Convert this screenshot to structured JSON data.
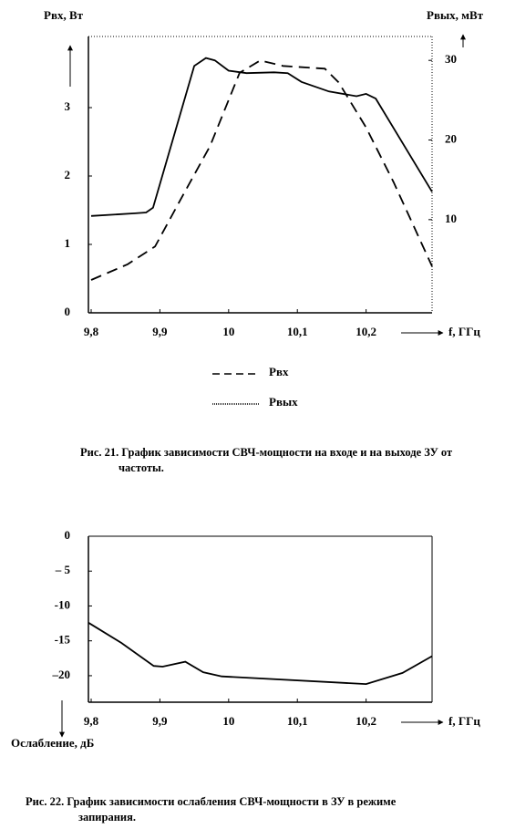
{
  "chart_data": [
    {
      "type": "line",
      "y_label": "Pвх, Вт",
      "y2_label": "Pвых, мВт",
      "x_label": "f, ГГц",
      "caption": [
        "Рис. 21. График зависимости СВЧ-мощности на входе и на выходе ЗУ от",
        "частоты."
      ],
      "xlim": [
        9.796,
        10.296
      ],
      "xticks": [
        {
          "value": 9.8,
          "label": "9,8"
        },
        {
          "value": 9.9,
          "label": "9,9"
        },
        10,
        {
          "value": 10.1,
          "label": "10,1"
        },
        {
          "value": 10.2,
          "label": "10,2"
        }
      ],
      "ylim": [
        0,
        4.04
      ],
      "yticks": [
        0,
        1,
        2,
        3
      ],
      "y2lim": [
        -1.7,
        33
      ],
      "y2ticks": [
        10,
        20,
        30
      ],
      "legend": "bottom",
      "series": [
        {
          "name": "Pвх",
          "color": "#000000",
          "line_style": "dashed",
          "x": [
            9.8,
            9.853,
            9.893,
            9.933,
            9.973,
            10.016,
            10.046,
            10.079,
            10.14,
            10.16,
            10.2,
            10.24,
            10.296
          ],
          "values": [
            0.48,
            0.71,
            0.97,
            1.71,
            2.44,
            3.51,
            3.69,
            3.61,
            3.57,
            3.37,
            2.71,
            1.91,
            0.68
          ]
        },
        {
          "name": "Pвых",
          "color": "#000000",
          "line_style": "solid",
          "axis": "y2",
          "x": [
            9.8,
            9.864,
            9.88,
            9.89,
            9.95,
            9.967,
            9.98,
            10.0,
            10.026,
            10.066,
            10.086,
            10.106,
            10.146,
            10.186,
            10.2,
            10.214,
            10.296
          ],
          "values": [
            10.46,
            10.8,
            10.9,
            11.5,
            29.3,
            30.3,
            30,
            28.7,
            28.4,
            28.5,
            28.4,
            27.3,
            26.1,
            25.5,
            25.8,
            25.2,
            13.5
          ]
        }
      ]
    },
    {
      "type": "line",
      "y_label": "Ослабление, дБ",
      "x_label": "f, ГГц",
      "caption": [
        "Рис. 22. График зависимости ослабления СВЧ-мощности в ЗУ в режиме",
        "запирания."
      ],
      "xlim": [
        9.796,
        10.296
      ],
      "xticks": [
        {
          "value": 9.8,
          "label": "9,8"
        },
        {
          "value": 9.9,
          "label": "9,9"
        },
        10,
        {
          "value": 10.1,
          "label": "10,1"
        },
        {
          "value": 10.2,
          "label": "10,2"
        }
      ],
      "ylim": [
        -23.8,
        0
      ],
      "yticks": [
        0,
        {
          "value": -5,
          "label": "– 5"
        },
        -10,
        -15,
        {
          "value": -20,
          "label": "–20"
        }
      ],
      "series": [
        {
          "color": "#000000",
          "line_style": "solid",
          "x": [
            9.796,
            9.844,
            9.891,
            9.904,
            9.937,
            9.963,
            9.99,
            10.2,
            10.253,
            10.296
          ],
          "values": [
            -12.4,
            -15.3,
            -18.6,
            -18.7,
            -18.0,
            -19.5,
            -20.1,
            -21.2,
            -19.6,
            -17.2
          ]
        }
      ]
    }
  ]
}
